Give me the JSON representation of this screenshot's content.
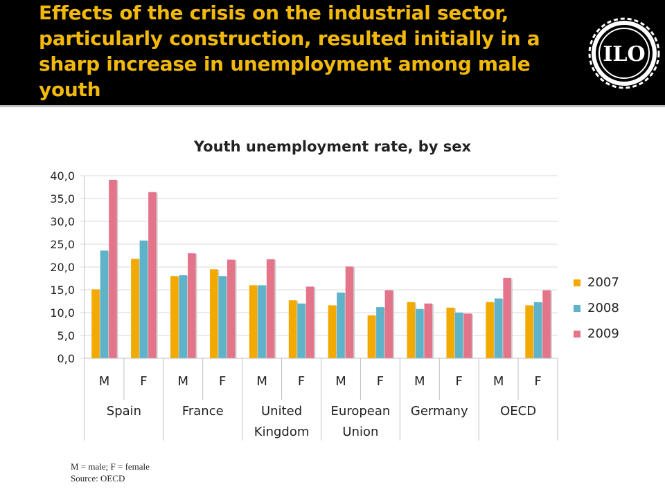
{
  "slide": {
    "title": "Effects of the crisis on the industrial sector, particularly construction, resulted initially in a sharp increase in unemployment among male youth",
    "logo_text": "ILO",
    "footnote_line1": "M = male; F = female",
    "footnote_line2": "Source: OECD"
  },
  "colors": {
    "2007": "#f2aa00",
    "2008": "#5fb3c9",
    "2009": "#e37489",
    "title": "#f2b90a"
  },
  "chart_data": {
    "type": "bar",
    "title": "Youth unemployment rate, by sex",
    "ylim": [
      0,
      40
    ],
    "yticks": [
      "0,0",
      "5,0",
      "10,0",
      "15,0",
      "20,0",
      "25,0",
      "30,0",
      "35,0",
      "40,0"
    ],
    "categories": [
      "M",
      "F",
      "M",
      "F",
      "M",
      "F",
      "M",
      "F",
      "M",
      "F",
      "M",
      "F"
    ],
    "groups": [
      "Spain",
      "France",
      "United Kingdom",
      "European Union",
      "Germany",
      "OECD"
    ],
    "series": [
      {
        "name": "2007",
        "values": [
          15.1,
          21.8,
          18.0,
          19.5,
          16.0,
          12.7,
          11.6,
          9.4,
          12.3,
          11.1,
          12.3,
          11.6
        ]
      },
      {
        "name": "2008",
        "values": [
          23.6,
          25.8,
          18.2,
          18.0,
          16.0,
          12.0,
          14.4,
          11.2,
          10.8,
          10.0,
          13.1,
          12.3
        ]
      },
      {
        "name": "2009",
        "values": [
          39.1,
          36.4,
          23.0,
          21.6,
          21.7,
          15.7,
          20.1,
          14.9,
          12.0,
          9.8,
          17.6,
          14.9
        ]
      }
    ],
    "grid": true,
    "legend": "right"
  }
}
